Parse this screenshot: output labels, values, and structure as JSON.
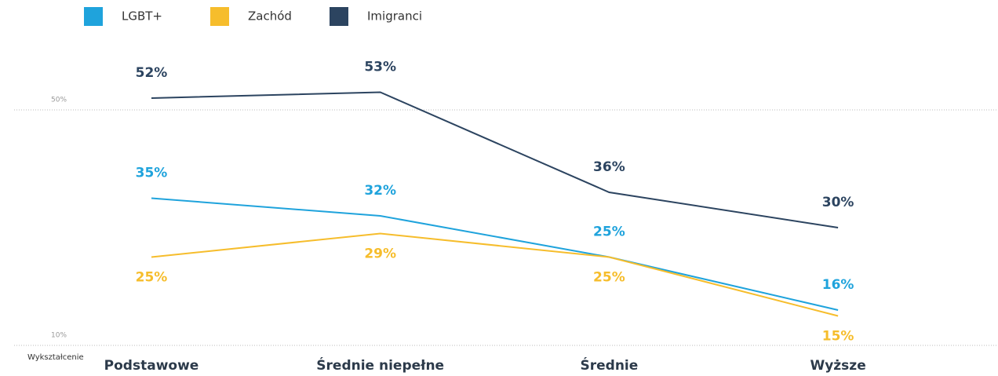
{
  "chart_data": {
    "type": "line",
    "x_label": "Wykształcenie",
    "categories": [
      "Podstawowe",
      "Średnie niepełne",
      "Średnie",
      "Wyższe"
    ],
    "series": [
      {
        "name": "LGBT+",
        "color": "#1fa3dc",
        "values": [
          35,
          32,
          25,
          16
        ],
        "value_labels": [
          "35%",
          "32%",
          "25%",
          "16%"
        ]
      },
      {
        "name": "Zachód",
        "color": "#f6bd2c",
        "values": [
          25,
          29,
          25,
          15
        ],
        "value_labels": [
          "25%",
          "29%",
          "25%",
          "15%"
        ]
      },
      {
        "name": "Imigranci",
        "color": "#2c4460",
        "values": [
          52,
          53,
          36,
          30
        ],
        "value_labels": [
          "52%",
          "53%",
          "36%",
          "30%"
        ]
      }
    ],
    "ylim": [
      10,
      56
    ],
    "yticks": [
      {
        "value": 10,
        "label": "10%"
      },
      {
        "value": 50,
        "label": "50%"
      }
    ],
    "grid": true,
    "legend": "top"
  }
}
